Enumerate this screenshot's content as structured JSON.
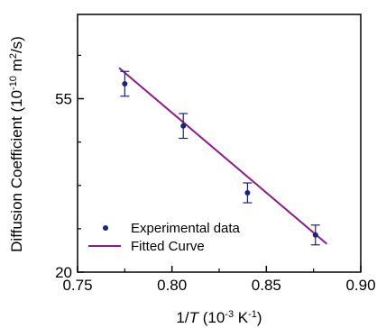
{
  "chart_data": {
    "type": "scatter",
    "xlabel_parts": {
      "pre": "1/",
      "italic": "T",
      "mid": " (10",
      "sup1": "-3",
      "mid2": " K",
      "sup2": "-1",
      "post": ")"
    },
    "ylabel_parts": {
      "pre": "Diffusion Coefficient (10",
      "sup1": "-10",
      "mid": " m",
      "sup2": "2",
      "post": "/s)"
    },
    "xlim": [
      0.75,
      0.9
    ],
    "ylim": [
      20,
      72
    ],
    "x_ticks": [
      0.75,
      0.8,
      0.85,
      0.9
    ],
    "x_tick_labels": [
      "0.75",
      "0.80",
      "0.85",
      "0.90"
    ],
    "y_ticks": [
      20,
      55
    ],
    "y_tick_labels": [
      "20",
      "55"
    ],
    "y_minor_ticks": [
      28.75,
      37.5,
      46.25,
      63.75
    ],
    "grid": false,
    "legend_position": "bottom-left",
    "series": [
      {
        "name": "Experimental data",
        "kind": "points_with_error_bars",
        "color": "#1a237e",
        "x": [
          0.775,
          0.806,
          0.84,
          0.876
        ],
        "y": [
          58.0,
          49.5,
          36.0,
          27.5
        ],
        "error": [
          2.5,
          2.5,
          2.0,
          2.0
        ]
      },
      {
        "name": "Fitted Curve",
        "kind": "line",
        "color": "#8b1a8b",
        "x": [
          0.772,
          0.882
        ],
        "y": [
          61.2,
          25.7
        ]
      }
    ]
  }
}
